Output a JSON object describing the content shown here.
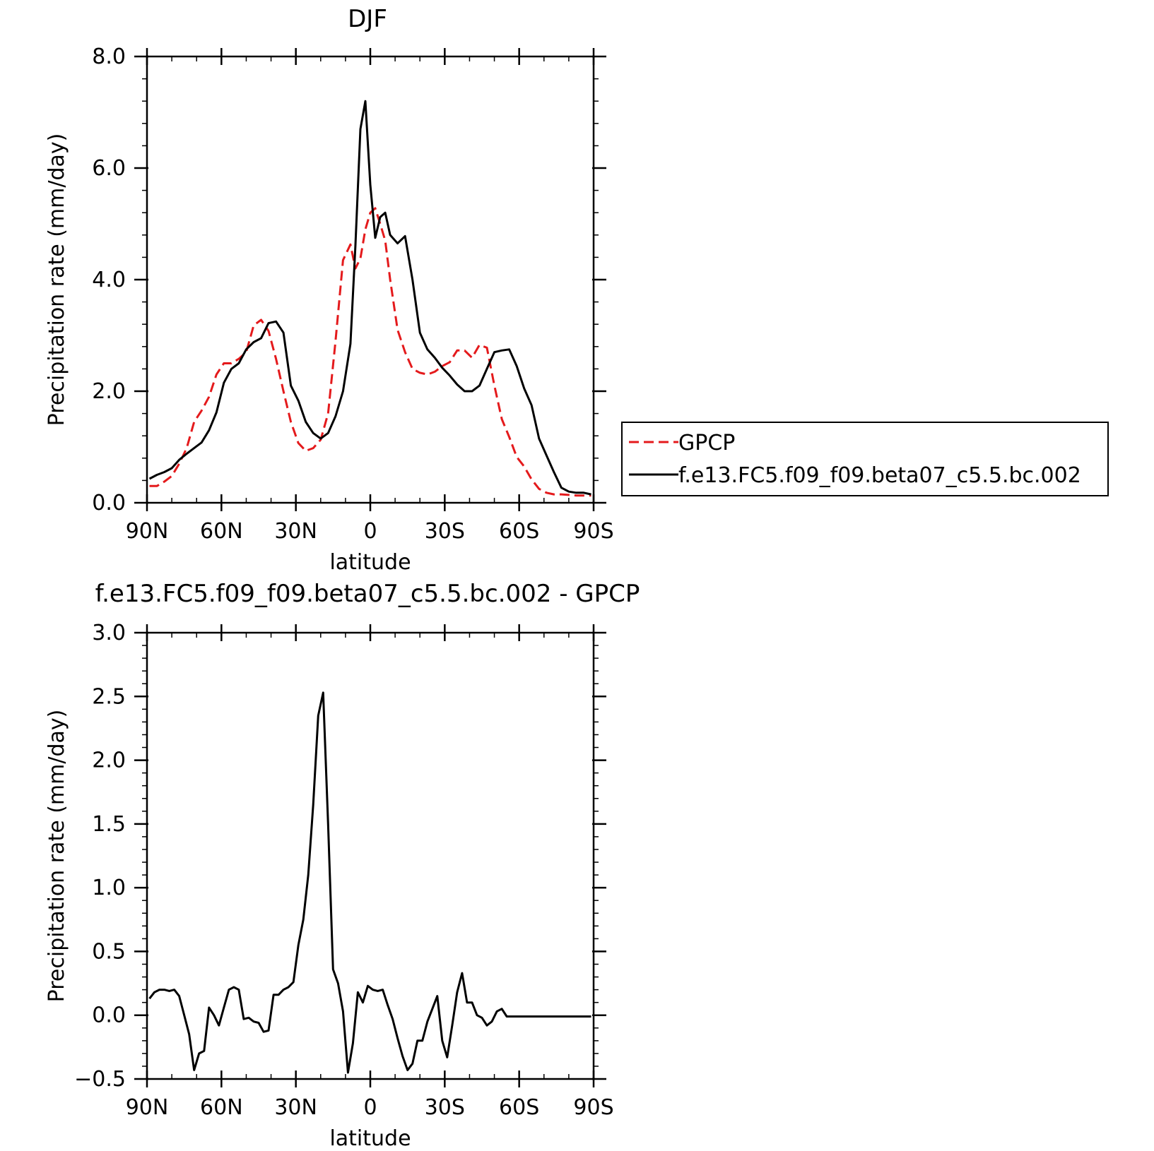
{
  "chart_data": [
    {
      "type": "line",
      "title": "DJF",
      "xlabel": "latitude",
      "ylabel": "Precipitation rate (mm/day)",
      "xlim": [
        90,
        -90
      ],
      "ylim": [
        0,
        8
      ],
      "x_ticks": [
        {
          "value": 90,
          "label": "90N"
        },
        {
          "value": 60,
          "label": "60N"
        },
        {
          "value": 30,
          "label": "30N"
        },
        {
          "value": 0,
          "label": "0"
        },
        {
          "value": -30,
          "label": "30S"
        },
        {
          "value": -60,
          "label": "60S"
        },
        {
          "value": -90,
          "label": "90S"
        }
      ],
      "y_ticks": [
        {
          "value": 0,
          "label": "0.0"
        },
        {
          "value": 2,
          "label": "2.0"
        },
        {
          "value": 4,
          "label": "4.0"
        },
        {
          "value": 6,
          "label": "6.0"
        },
        {
          "value": 8,
          "label": "8.0"
        }
      ],
      "legend_position": "right",
      "series": [
        {
          "name": "GPCP",
          "color": "#e41a1c",
          "dash": true,
          "x": [
            89,
            86,
            83,
            80,
            77,
            74,
            71,
            68,
            65,
            62,
            59,
            56,
            53,
            50,
            47,
            44,
            41,
            38,
            35,
            32,
            29,
            26,
            23,
            20,
            17,
            14,
            11,
            8,
            6,
            4,
            2,
            0,
            -2,
            -4,
            -6,
            -8,
            -11,
            -14,
            -17,
            -20,
            -23,
            -26,
            -29,
            -32,
            -35,
            -38,
            -41,
            -44,
            -47,
            -50,
            -53,
            -56,
            -59,
            -62,
            -65,
            -68,
            -71,
            -74,
            -77,
            -80,
            -83,
            -86,
            -89
          ],
          "values": [
            0.3,
            0.3,
            0.38,
            0.48,
            0.7,
            0.98,
            1.45,
            1.65,
            1.9,
            2.3,
            2.5,
            2.5,
            2.58,
            2.7,
            3.18,
            3.28,
            3.08,
            2.58,
            2.0,
            1.45,
            1.07,
            0.93,
            0.98,
            1.13,
            1.6,
            2.9,
            4.35,
            4.63,
            4.2,
            4.38,
            4.9,
            5.2,
            5.28,
            5.0,
            4.7,
            4.0,
            3.1,
            2.7,
            2.4,
            2.33,
            2.3,
            2.35,
            2.45,
            2.52,
            2.73,
            2.73,
            2.6,
            2.83,
            2.78,
            2.1,
            1.5,
            1.18,
            0.82,
            0.65,
            0.42,
            0.25,
            0.18,
            0.15,
            0.15,
            0.14,
            0.13,
            0.13,
            0.13
          ]
        },
        {
          "name": "f.e13.FC5.f09_f09.beta07_c5.5.bc.002",
          "color": "#000000",
          "dash": false,
          "x": [
            89,
            86,
            83,
            80,
            77,
            74,
            71,
            68,
            65,
            62,
            59,
            56,
            53,
            50,
            47,
            44,
            41,
            38,
            35,
            32,
            29,
            26,
            23,
            20,
            17,
            14,
            11,
            8,
            6,
            4,
            2,
            0,
            -2,
            -4,
            -6,
            -8,
            -11,
            -14,
            -17,
            -20,
            -23,
            -26,
            -29,
            -32,
            -35,
            -38,
            -41,
            -44,
            -47,
            -50,
            -53,
            -56,
            -59,
            -62,
            -65,
            -68,
            -71,
            -74,
            -77,
            -80,
            -83,
            -86,
            -89
          ],
          "values": [
            0.43,
            0.5,
            0.55,
            0.62,
            0.77,
            0.88,
            0.98,
            1.08,
            1.3,
            1.62,
            2.15,
            2.4,
            2.5,
            2.75,
            2.88,
            2.95,
            3.22,
            3.25,
            3.05,
            2.1,
            1.83,
            1.45,
            1.25,
            1.15,
            1.25,
            1.55,
            2.0,
            2.85,
            4.6,
            6.7,
            7.2,
            5.7,
            4.75,
            5.12,
            5.2,
            4.8,
            4.65,
            4.78,
            4.0,
            3.05,
            2.75,
            2.6,
            2.42,
            2.28,
            2.12,
            2.0,
            2.0,
            2.1,
            2.4,
            2.7,
            2.73,
            2.75,
            2.45,
            2.05,
            1.75,
            1.15,
            0.85,
            0.55,
            0.27,
            0.2,
            0.18,
            0.18,
            0.15
          ]
        }
      ]
    },
    {
      "type": "line",
      "title": "f.e13.FC5.f09_f09.beta07_c5.5.bc.002 - GPCP",
      "xlabel": "latitude",
      "ylabel": "Precipitation rate (mm/day)",
      "xlim": [
        90,
        -90
      ],
      "ylim": [
        -0.5,
        3.0
      ],
      "x_ticks": [
        {
          "value": 90,
          "label": "90N"
        },
        {
          "value": 60,
          "label": "60N"
        },
        {
          "value": 30,
          "label": "30N"
        },
        {
          "value": 0,
          "label": "0"
        },
        {
          "value": -30,
          "label": "30S"
        },
        {
          "value": -60,
          "label": "60S"
        },
        {
          "value": -90,
          "label": "90S"
        }
      ],
      "y_ticks": [
        {
          "value": -0.5,
          "label": "−0.5"
        },
        {
          "value": 0,
          "label": "0.0"
        },
        {
          "value": 0.5,
          "label": "0.5"
        },
        {
          "value": 1,
          "label": "1.0"
        },
        {
          "value": 1.5,
          "label": "1.5"
        },
        {
          "value": 2,
          "label": "2.0"
        },
        {
          "value": 2.5,
          "label": "2.5"
        },
        {
          "value": 3,
          "label": "3.0"
        }
      ],
      "series": [
        {
          "color": "#000000",
          "dash": false,
          "x": [
            89,
            87,
            85,
            83,
            81,
            79,
            77,
            75,
            73,
            71,
            69,
            67,
            65,
            63,
            61,
            59,
            57,
            55,
            53,
            51,
            49,
            47,
            45,
            43,
            41,
            39,
            37,
            35,
            33,
            31,
            29,
            27,
            25,
            23,
            21,
            19,
            17,
            15,
            13,
            11,
            9,
            7,
            5,
            3,
            1,
            -1,
            -3,
            -5,
            -7,
            -9,
            -11,
            -13,
            -15,
            -17,
            -19,
            -21,
            -23,
            -25,
            -27,
            -29,
            -31,
            -33,
            -35,
            -37,
            -39,
            -41,
            -43,
            -45,
            -47,
            -49,
            -51,
            -53,
            -55,
            -57,
            -59,
            -61,
            -63,
            -65,
            -67,
            -69,
            -71,
            -73,
            -75,
            -77,
            -79,
            -81,
            -83,
            -85,
            -87,
            -89
          ],
          "values": [
            0.13,
            0.18,
            0.2,
            0.2,
            0.19,
            0.2,
            0.15,
            0.0,
            -0.15,
            -0.43,
            -0.3,
            -0.28,
            0.06,
            0.0,
            -0.08,
            0.06,
            0.2,
            0.22,
            0.2,
            -0.03,
            -0.02,
            -0.05,
            -0.06,
            -0.13,
            -0.12,
            0.16,
            0.16,
            0.2,
            0.22,
            0.26,
            0.55,
            0.75,
            1.1,
            1.65,
            2.35,
            2.53,
            1.5,
            0.36,
            0.25,
            0.03,
            -0.45,
            -0.22,
            0.18,
            0.1,
            0.23,
            0.2,
            0.19,
            0.2,
            0.08,
            -0.03,
            -0.18,
            -0.32,
            -0.43,
            -0.38,
            -0.2,
            -0.2,
            -0.05,
            0.05,
            0.15,
            -0.2,
            -0.33,
            -0.08,
            0.18,
            0.33,
            0.1,
            0.1,
            0.0,
            -0.02,
            -0.08,
            -0.05,
            0.03,
            0.05,
            -0.01,
            -0.01,
            -0.01,
            -0.01,
            -0.01,
            -0.01,
            -0.01,
            -0.01,
            -0.01,
            -0.01,
            -0.01,
            -0.01,
            -0.01,
            -0.01,
            -0.01,
            -0.01,
            -0.01,
            -0.01
          ]
        }
      ]
    }
  ]
}
